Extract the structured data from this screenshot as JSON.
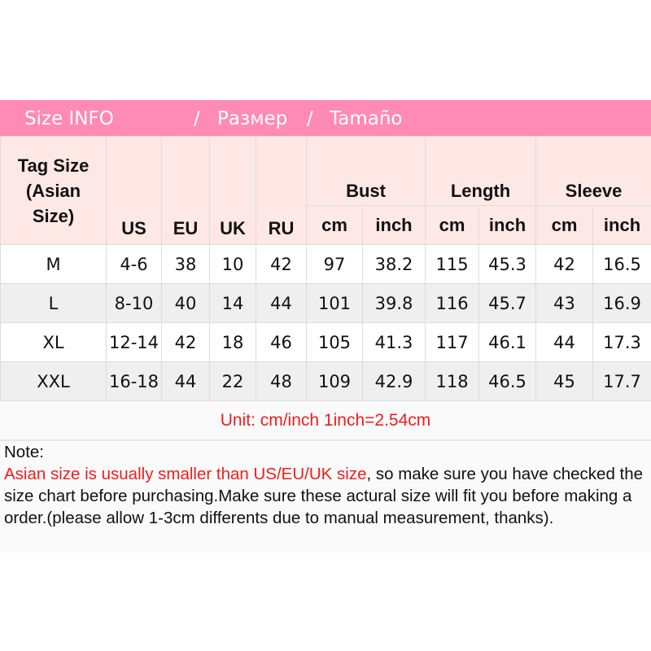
{
  "banner": {
    "en": "Size INFO",
    "sep1": "/",
    "ru": "Размер",
    "sep2": "/",
    "es": "Tamaño"
  },
  "header": {
    "tag": [
      "Tag Size",
      "(Asian",
      "Size)"
    ],
    "us": "US",
    "eu": "EU",
    "uk": "UK",
    "ru": "RU",
    "bust": "Bust",
    "length": "Length",
    "sleeve": "Sleeve",
    "cm": "cm",
    "inch": "inch"
  },
  "rows": [
    [
      "M",
      "4-6",
      "38",
      "10",
      "42",
      "97",
      "38.2",
      "115",
      "45.3",
      "42",
      "16.5"
    ],
    [
      "L",
      "8-10",
      "40",
      "14",
      "44",
      "101",
      "39.8",
      "116",
      "45.7",
      "43",
      "16.9"
    ],
    [
      "XL",
      "12-14",
      "42",
      "18",
      "46",
      "105",
      "41.3",
      "117",
      "46.1",
      "44",
      "17.3"
    ],
    [
      "XXL",
      "16-18",
      "44",
      "22",
      "48",
      "109",
      "42.9",
      "118",
      "46.5",
      "45",
      "17.7"
    ]
  ],
  "unit": "Unit: cm/inch   1inch=2.54cm",
  "note": {
    "label": "Note:",
    "warning": "Asian size is usually smaller than US/EU/UK size",
    "text": ", so make sure you have checked the size chart before purchasing.Make sure these actural size will fit you before making a order.(please allow 1-3cm differents due to manual measurement, thanks)."
  },
  "colors": {
    "banner": "#ff8ab4",
    "header_bg": "#fde8e6",
    "accent_red": "#f21c1c"
  }
}
